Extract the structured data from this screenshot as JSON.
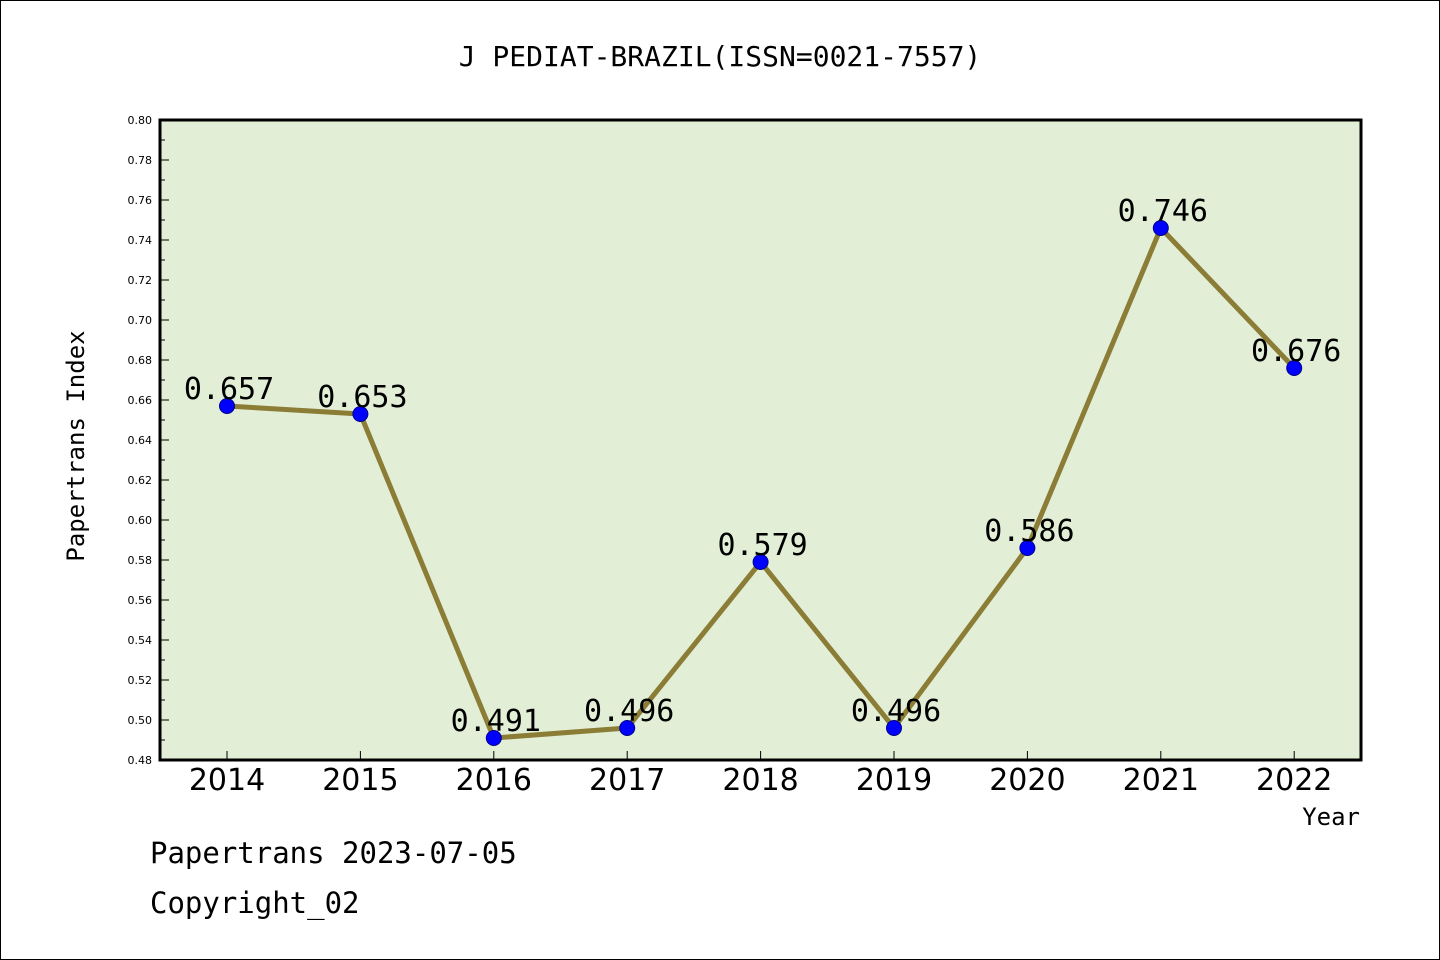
{
  "chart_data": {
    "type": "line",
    "title": "J PEDIAT-BRAZIL(ISSN=0021-7557)",
    "xlabel": "Year",
    "ylabel": "Papertrans Index",
    "x": [
      "2014",
      "2015",
      "2016",
      "2017",
      "2018",
      "2019",
      "2020",
      "2021",
      "2022"
    ],
    "series": [
      {
        "values": [
          0.657,
          0.653,
          0.491,
          0.496,
          0.579,
          0.496,
          0.586,
          0.746,
          0.676
        ],
        "labels": [
          "0.657",
          "0.653",
          "0.491",
          "0.496",
          "0.579",
          "0.496",
          "0.586",
          "0.746",
          "0.676"
        ]
      }
    ],
    "ylim": [
      0.48,
      0.8
    ],
    "yticks": [
      "0.48",
      "0.50",
      "0.52",
      "0.54",
      "0.56",
      "0.58",
      "0.60",
      "0.62",
      "0.64",
      "0.66",
      "0.68",
      "0.70",
      "0.72",
      "0.74",
      "0.76",
      "0.78",
      "0.80"
    ],
    "grid": false,
    "legend": "none",
    "colors": {
      "plot_background": "#e2efd6",
      "line": "#8b7d36",
      "marker": "#0000ff"
    }
  },
  "footer": {
    "date_line": "Papertrans 2023-07-05",
    "copyright": "Copyright_02"
  }
}
